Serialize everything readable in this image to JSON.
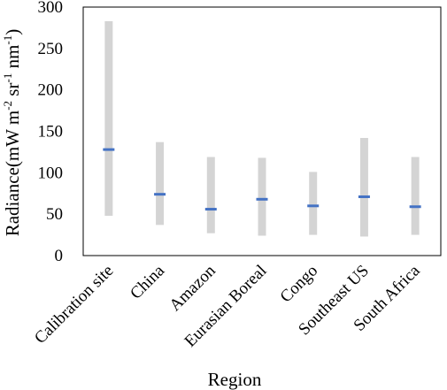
{
  "chart_data": {
    "type": "range-bar",
    "title": "",
    "xlabel": "Region",
    "ylabel": {
      "prefix": "Radiance(mW m",
      "sup1": "-2",
      "mid1": " sr",
      "sup2": "-1",
      "mid2": " nm",
      "sup3": "-1",
      "suffix": ")"
    },
    "ylim": [
      0,
      300
    ],
    "yticks": [
      0,
      50,
      100,
      150,
      200,
      250,
      300
    ],
    "grid": false,
    "categories": [
      "Calibration site",
      "China",
      "Amazon",
      "Eurasian Boreal",
      "Congo",
      "Southeast US",
      "South Africa"
    ],
    "series": [
      {
        "low": [
          48,
          37,
          27,
          24,
          25,
          23,
          25
        ]
      },
      {
        "high": [
          283,
          137,
          119,
          118,
          101,
          142,
          119
        ]
      },
      {
        "mean": [
          128,
          74,
          56,
          68,
          60,
          71,
          59
        ]
      }
    ],
    "colors": {
      "range": "#d4d4d4",
      "mean": "#4472c4",
      "axis": "#000000"
    }
  }
}
